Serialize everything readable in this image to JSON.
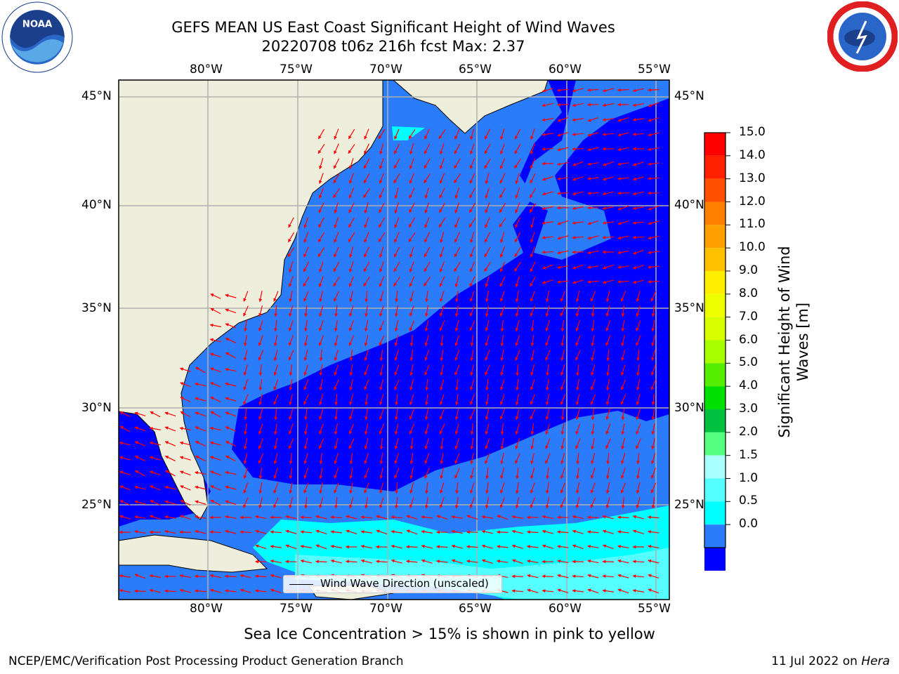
{
  "title": {
    "line1": "GEFS MEAN US East Coast Significant Height of Wind Waves",
    "line2": "20220708 t06z 216h fcst   Max: 2.37"
  },
  "logos": {
    "left": "NOAA",
    "right": "NATIONAL WEATHER SERVICE"
  },
  "map": {
    "lon_labels": [
      "80°W",
      "75°W",
      "70°W",
      "65°W",
      "60°W",
      "55°W"
    ],
    "lat_labels": [
      "45°N",
      "40°N",
      "35°N",
      "30°N",
      "25°N"
    ],
    "legend_label": "Wind Wave Direction (unscaled)",
    "colors": {
      "land": "#eeeedc",
      "level_0_0.5": "#0000ff",
      "level_0.5_1.0": "#2a7cfa",
      "level_1.0_1.5": "#00ffff",
      "level_1.5_2.0": "#55ffff",
      "arrow": "#ff0000",
      "grid": "#b0b0b0"
    }
  },
  "colorbar": {
    "title": "Significant Height of Wind Waves [m]",
    "ticks": [
      "15.0",
      "14.0",
      "13.0",
      "12.0",
      "11.0",
      "10.0",
      "9.0",
      "8.0",
      "7.0",
      "6.0",
      "5.0",
      "4.0",
      "3.0",
      "2.0",
      "1.5",
      "1.0",
      "0.5",
      "0.0"
    ],
    "colors": [
      "#ff0000",
      "#ff2000",
      "#ff5000",
      "#ff8000",
      "#ffa000",
      "#ffc000",
      "#ffee00",
      "#f0ff00",
      "#d8ff00",
      "#a8ff00",
      "#55ee00",
      "#00e000",
      "#00c040",
      "#55ff7f",
      "#aaffff",
      "#55ffff",
      "#00ffff",
      "#2a7cfa",
      "#0000ff"
    ]
  },
  "caption": "Sea Ice Concentration > 15% is shown in pink to yellow",
  "footer": {
    "left": "NCEP/EMC/Verification Post Processing Product Generation Branch",
    "right_prefix": "11 Jul 2022 on ",
    "right_host": "Hera"
  }
}
